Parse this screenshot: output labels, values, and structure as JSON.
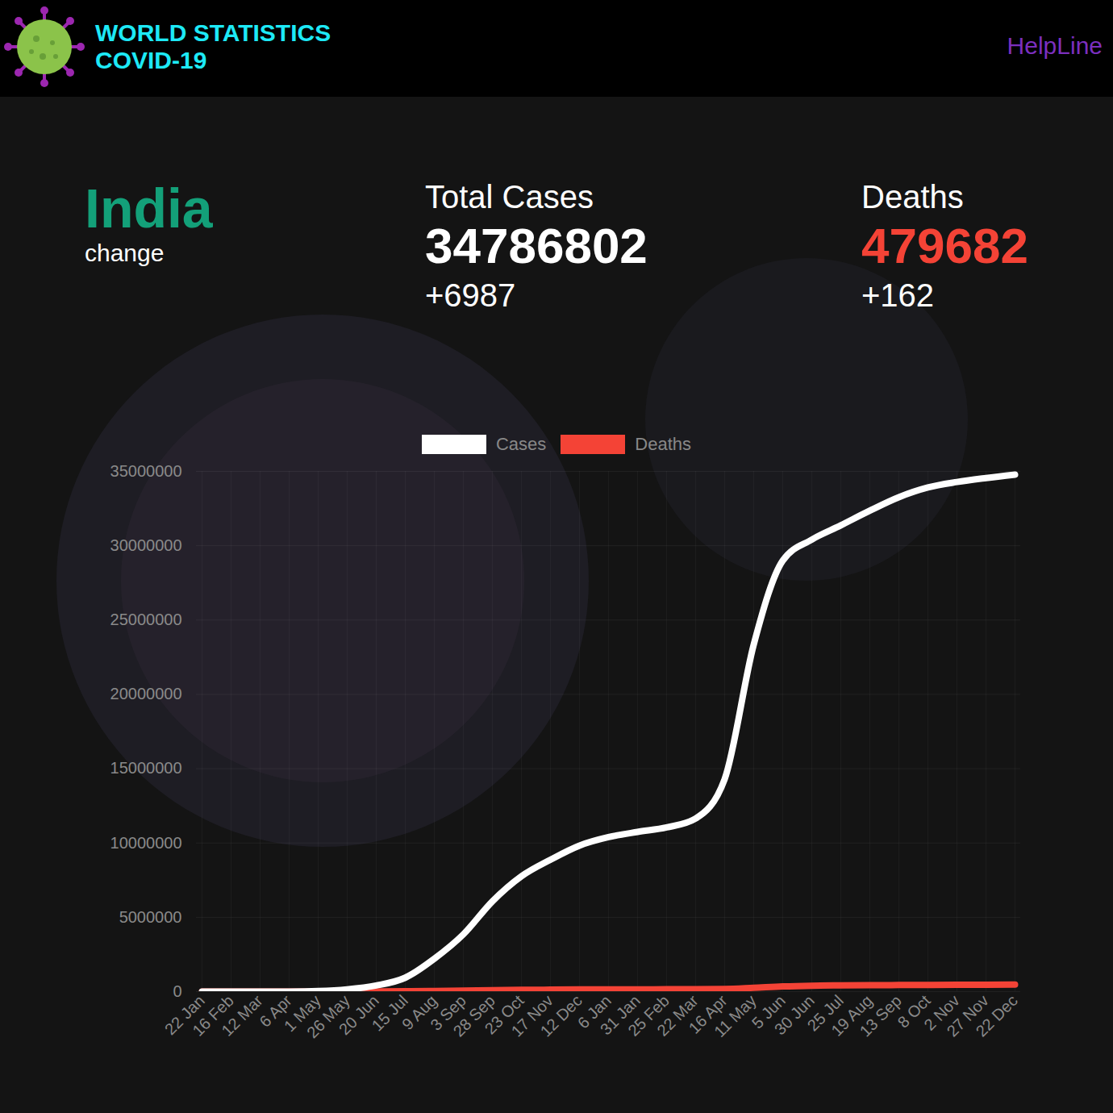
{
  "header": {
    "title": "WORLD STATISTICS",
    "subtitle": "COVID-19",
    "link": "HelpLine"
  },
  "summary": {
    "country": "India",
    "country_note": "change",
    "cases_label": "Total Cases",
    "cases_total": 34786802,
    "cases_change": "+6987",
    "deaths_label": "Deaths",
    "deaths_total": 479682,
    "deaths_change": "+162"
  },
  "chart_data": {
    "type": "line",
    "categories": [
      "22 Jan",
      "16 Feb",
      "12 Mar",
      "6 Apr",
      "1 May",
      "26 May",
      "20 Jun",
      "15 Jul",
      "9 Aug",
      "3 Sep",
      "28 Sep",
      "23 Oct",
      "17 Nov",
      "12 Dec",
      "6 Jan",
      "31 Jan",
      "25 Feb",
      "22 Mar",
      "16 Apr",
      "11 May",
      "5 Jun",
      "30 Jun",
      "25 Jul",
      "19 Aug",
      "13 Sep",
      "8 Oct",
      "2 Nov",
      "27 Nov",
      "22 Dec"
    ],
    "series": [
      {
        "name": "Cases",
        "color": "#ffffff",
        "values": [
          0,
          3,
          74,
          4778,
          37257,
          150793,
          410461,
          936181,
          2215074,
          3853406,
          6074702,
          7761312,
          8874290,
          9826775,
          10395278,
          10746183,
          11046914,
          11646081,
          14291917,
          23340938,
          28996473,
          30411634,
          31371901,
          32358829,
          33264175,
          33915569,
          34285814,
          34555431,
          34786802
        ]
      },
      {
        "name": "Deaths",
        "color": "#f44336",
        "values": [
          0,
          0,
          1,
          136,
          1223,
          4337,
          13254,
          24309,
          44386,
          67376,
          95542,
          117306,
          130993,
          142628,
          150336,
          154274,
          156705,
          159967,
          174308,
          254197,
          346759,
          399459,
          420016,
          433589,
          442317,
          450127,
          458470,
          467933,
          479682
        ]
      }
    ],
    "ylim": [
      0,
      35000000
    ],
    "yticks": [
      0,
      5000000,
      10000000,
      15000000,
      20000000,
      25000000,
      30000000,
      35000000
    ],
    "grid": true,
    "legend": "top"
  }
}
